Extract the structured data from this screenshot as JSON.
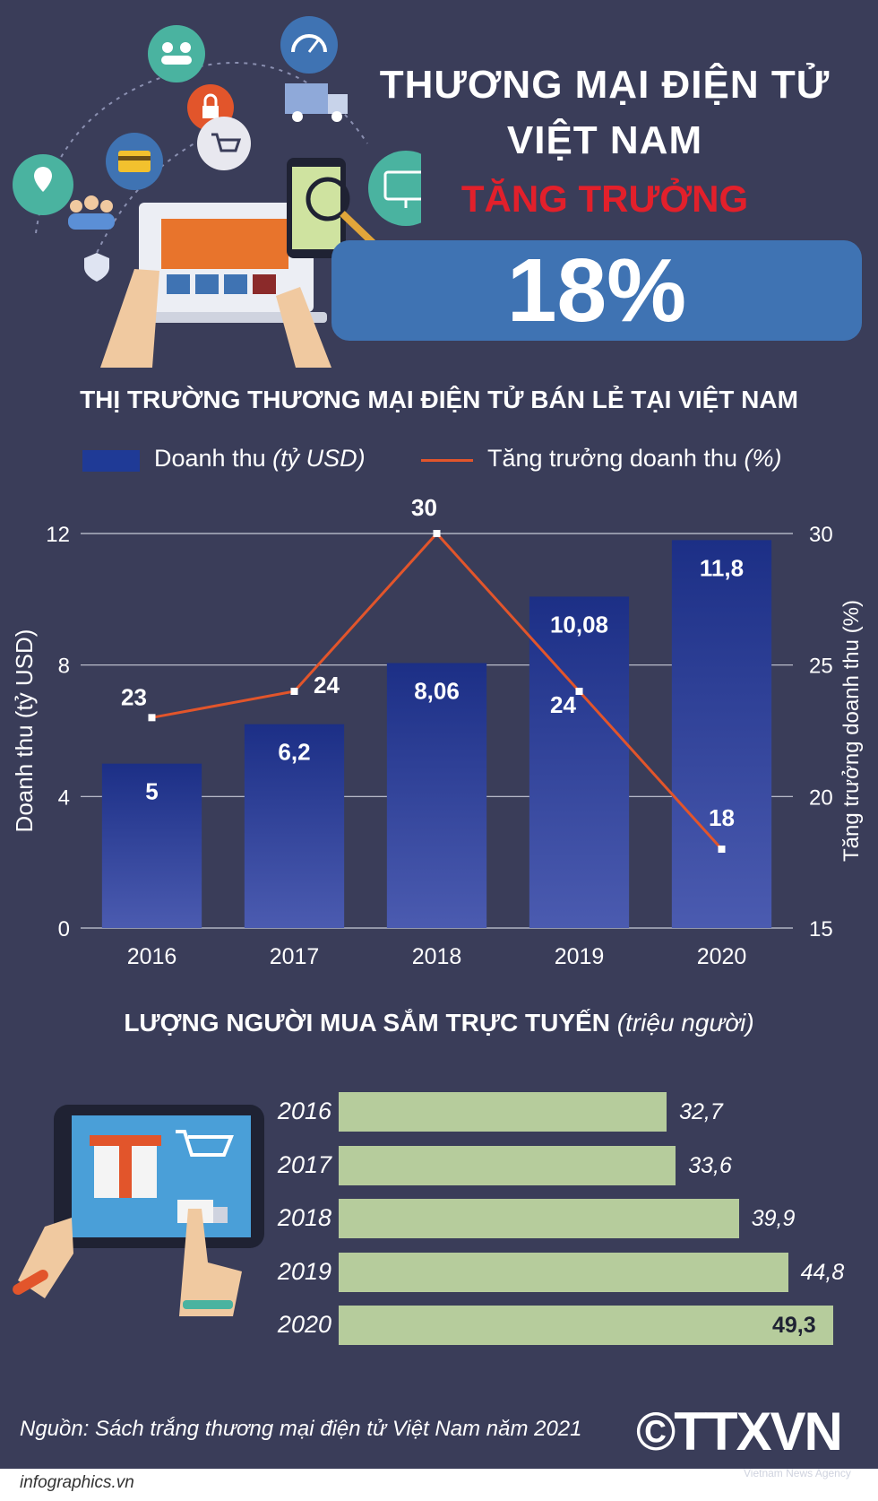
{
  "header": {
    "title_line1": "THƯƠNG MẠI ĐIỆN TỬ",
    "title_line2": "VIỆT NAM",
    "growth_label": "TĂNG TRƯỞNG",
    "growth_value": "18%"
  },
  "colors": {
    "background": "#3a3d59",
    "bar": "#1f3a96",
    "line": "#e2552b",
    "hbar": "#b6cc9c",
    "pill": "#3f73b3",
    "accent_red": "#e2202b"
  },
  "section1": {
    "title": "THỊ TRƯỜNG THƯƠNG MẠI ĐIỆN TỬ BÁN LẺ TẠI VIỆT NAM"
  },
  "section2": {
    "title": "LƯỢNG NGƯỜI MUA SẮM TRỰC TUYẾN",
    "unit": "(triệu người)"
  },
  "chart_data": [
    {
      "type": "bar",
      "categories": [
        "2016",
        "2017",
        "2018",
        "2019",
        "2020"
      ],
      "series": [
        {
          "name": "Doanh thu (tỷ USD)",
          "type": "bar",
          "axis": "left",
          "values": [
            5,
            6.2,
            8.06,
            10.08,
            11.8
          ],
          "labels": [
            "5",
            "6,2",
            "8,06",
            "10,08",
            "11,8"
          ]
        },
        {
          "name": "Tăng trưởng doanh thu (%)",
          "type": "line",
          "axis": "right",
          "values": [
            23,
            24,
            30,
            24,
            18
          ],
          "labels": [
            "23",
            "24",
            "30",
            "24",
            "18"
          ]
        }
      ],
      "legend": {
        "bar_name": "Doanh thu",
        "bar_unit": "(tỷ USD)",
        "line_name": "Tăng trưởng doanh thu",
        "line_unit": "(%)",
        "position": "top"
      },
      "ylabel_left": "Doanh thu (tỷ USD)",
      "ylabel_right": "Tăng trưởng doanh thu (%)",
      "ylim_left": [
        0,
        12
      ],
      "ylim_right": [
        15,
        30
      ],
      "yticks_left": [
        "0",
        "4",
        "8",
        "12"
      ],
      "yticks_right": [
        "15",
        "20",
        "25",
        "30"
      ],
      "grid": true
    },
    {
      "type": "bar",
      "orientation": "horizontal",
      "categories": [
        "2016",
        "2017",
        "2018",
        "2019",
        "2020"
      ],
      "values": [
        32.7,
        33.6,
        39.9,
        44.8,
        49.3
      ],
      "labels": [
        "32,7",
        "33,6",
        "39,9",
        "44,8",
        "49,3"
      ]
    }
  ],
  "footer": {
    "source": "Nguồn: Sách trắng thương mại điện tử Việt Nam năm 2021",
    "logo_text": "©TTXVN",
    "logo_sub": "Vietnam News Agency",
    "site": "infographics.vn"
  }
}
